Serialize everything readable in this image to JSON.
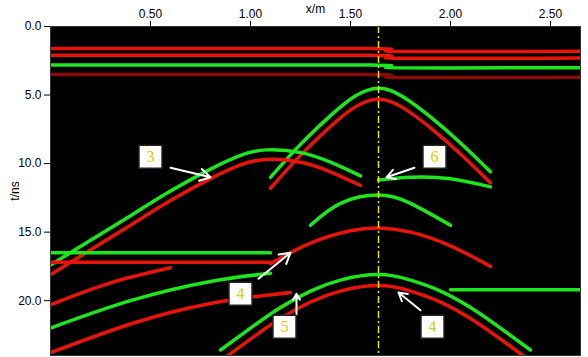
{
  "chart_data": {
    "type": "radargram",
    "x_label": "x/m",
    "y_label": "t/ns",
    "xlim": [
      0,
      2.65
    ],
    "ylim": [
      0,
      24
    ],
    "xticks": [
      {
        "value": 0.5,
        "label": "0.50"
      },
      {
        "value": 1.0,
        "label": "1.00"
      },
      {
        "value": 1.5,
        "label": "1.50"
      },
      {
        "value": 2.0,
        "label": "2.00"
      },
      {
        "value": 2.5,
        "label": "2.50"
      }
    ],
    "yticks": [
      {
        "value": 0,
        "label": "0.0"
      },
      {
        "value": 5,
        "label": "5.0"
      },
      {
        "value": 10,
        "label": "10.0"
      },
      {
        "value": 15,
        "label": "15.0"
      },
      {
        "value": 20,
        "label": "20.0"
      }
    ],
    "series": [
      {
        "color": "#e8140c",
        "values": [
          [
            0,
            1.6
          ],
          [
            1.6,
            1.6
          ],
          [
            1.7,
            1.8
          ],
          [
            2.65,
            1.8
          ]
        ]
      },
      {
        "color": "#e8140c",
        "values": [
          [
            0,
            2.1
          ],
          [
            1.6,
            2.1
          ],
          [
            1.7,
            2.3
          ],
          [
            2.65,
            2.3
          ]
        ]
      },
      {
        "color": "#1ee61e",
        "values": [
          [
            0,
            2.8
          ],
          [
            1.6,
            2.8
          ],
          [
            1.7,
            3.0
          ],
          [
            2.65,
            3.0
          ]
        ]
      },
      {
        "color": "#8a0a06",
        "values": [
          [
            0,
            3.5
          ],
          [
            1.6,
            3.5
          ],
          [
            1.7,
            3.7
          ],
          [
            2.65,
            3.7
          ]
        ]
      },
      {
        "color": "#1ee61e",
        "values": [
          [
            1.1,
            11.0
          ],
          [
            1.25,
            8.6
          ],
          [
            1.4,
            6.5
          ],
          [
            1.52,
            5.1
          ],
          [
            1.64,
            4.5
          ],
          [
            1.76,
            5.1
          ],
          [
            1.9,
            6.6
          ],
          [
            2.05,
            8.5
          ],
          [
            2.2,
            10.6
          ]
        ]
      },
      {
        "color": "#e8140c",
        "values": [
          [
            1.1,
            11.8
          ],
          [
            1.25,
            9.4
          ],
          [
            1.4,
            7.3
          ],
          [
            1.52,
            5.9
          ],
          [
            1.64,
            5.3
          ],
          [
            1.76,
            5.9
          ],
          [
            1.9,
            7.4
          ],
          [
            2.05,
            9.3
          ],
          [
            2.2,
            11.4
          ]
        ]
      },
      {
        "color": "#1ee61e",
        "values": [
          [
            0,
            17.4
          ],
          [
            0.2,
            15.6
          ],
          [
            0.4,
            13.8
          ],
          [
            0.6,
            12.0
          ],
          [
            0.8,
            10.4
          ],
          [
            0.95,
            9.4
          ],
          [
            1.08,
            9.0
          ],
          [
            1.25,
            9.2
          ],
          [
            1.4,
            9.9
          ],
          [
            1.55,
            10.9
          ]
        ]
      },
      {
        "color": "#e8140c",
        "values": [
          [
            0,
            18.1
          ],
          [
            0.2,
            16.3
          ],
          [
            0.4,
            14.5
          ],
          [
            0.6,
            12.7
          ],
          [
            0.8,
            11.1
          ],
          [
            0.95,
            10.1
          ],
          [
            1.08,
            9.7
          ],
          [
            1.25,
            9.9
          ],
          [
            1.4,
            10.6
          ],
          [
            1.55,
            11.6
          ]
        ]
      },
      {
        "color": "#1ee61e",
        "values": [
          [
            1.3,
            14.5
          ],
          [
            1.45,
            12.9
          ],
          [
            1.64,
            12.3
          ],
          [
            1.8,
            12.9
          ],
          [
            2.0,
            14.5
          ]
        ]
      },
      {
        "color": "#1ee61e",
        "values": [
          [
            1.64,
            11.2
          ],
          [
            1.8,
            11.0
          ],
          [
            2.0,
            11.1
          ],
          [
            2.2,
            11.7
          ]
        ]
      },
      {
        "color": "#1ee61e",
        "values": [
          [
            0,
            16.5
          ],
          [
            1.1,
            16.5
          ]
        ]
      },
      {
        "color": "#e8140c",
        "values": [
          [
            0,
            17.2
          ],
          [
            1.1,
            17.2
          ]
        ]
      },
      {
        "color": "#e8140c",
        "values": [
          [
            1.1,
            17.3
          ],
          [
            1.3,
            15.8
          ],
          [
            1.5,
            14.9
          ],
          [
            1.64,
            14.7
          ],
          [
            1.8,
            15.0
          ],
          [
            2.0,
            16.0
          ],
          [
            2.2,
            17.5
          ]
        ]
      },
      {
        "color": "#1ee61e",
        "values": [
          [
            0.85,
            23.6
          ],
          [
            1.0,
            22.0
          ],
          [
            1.15,
            20.5
          ],
          [
            1.3,
            19.3
          ],
          [
            1.45,
            18.5
          ],
          [
            1.64,
            18.1
          ],
          [
            1.8,
            18.5
          ],
          [
            1.95,
            19.3
          ],
          [
            2.1,
            20.5
          ],
          [
            2.25,
            22.0
          ],
          [
            2.4,
            23.6
          ]
        ]
      },
      {
        "color": "#e8140c",
        "values": [
          [
            0.85,
            24.4
          ],
          [
            1.0,
            22.8
          ],
          [
            1.15,
            21.3
          ],
          [
            1.3,
            20.1
          ],
          [
            1.45,
            19.3
          ],
          [
            1.64,
            18.9
          ],
          [
            1.8,
            19.3
          ],
          [
            1.95,
            20.1
          ],
          [
            2.1,
            21.3
          ],
          [
            2.25,
            22.8
          ],
          [
            2.4,
            24.4
          ]
        ]
      },
      {
        "color": "#1ee61e",
        "values": [
          [
            2.0,
            19.2
          ],
          [
            2.65,
            19.2
          ]
        ]
      },
      {
        "color": "#e8140c",
        "values": [
          [
            0,
            20.3
          ],
          [
            0.3,
            18.7
          ],
          [
            0.6,
            17.6
          ]
        ]
      },
      {
        "color": "#1ee61e",
        "values": [
          [
            0,
            22.0
          ],
          [
            0.4,
            20.0
          ],
          [
            0.8,
            18.6
          ],
          [
            1.1,
            18.0
          ]
        ]
      },
      {
        "color": "#e8140c",
        "values": [
          [
            0,
            23.8
          ],
          [
            0.4,
            21.7
          ],
          [
            0.8,
            20.2
          ],
          [
            1.2,
            19.4
          ]
        ]
      }
    ],
    "reference_line": {
      "x": 1.64,
      "color": "#e6e600"
    },
    "annotations": [
      {
        "text": "3",
        "x": 0.5,
        "y": 9.5,
        "arrow": [
          [
            0.6,
            10.3
          ],
          [
            0.8,
            11.0
          ]
        ]
      },
      {
        "text": "6",
        "x": 1.92,
        "y": 9.5,
        "arrow": [
          [
            1.82,
            10.3
          ],
          [
            1.68,
            11.0
          ]
        ]
      },
      {
        "text": "4",
        "x": 0.95,
        "y": 19.5,
        "arrow": [
          [
            1.04,
            18.4
          ],
          [
            1.2,
            16.5
          ]
        ]
      },
      {
        "text": "5",
        "x": 1.17,
        "y": 21.9,
        "arrow": [
          [
            1.23,
            21.0
          ],
          [
            1.23,
            19.5
          ]
        ]
      },
      {
        "text": "4",
        "x": 1.91,
        "y": 21.9,
        "arrow": [
          [
            1.85,
            20.7
          ],
          [
            1.74,
            19.4
          ]
        ]
      }
    ]
  }
}
